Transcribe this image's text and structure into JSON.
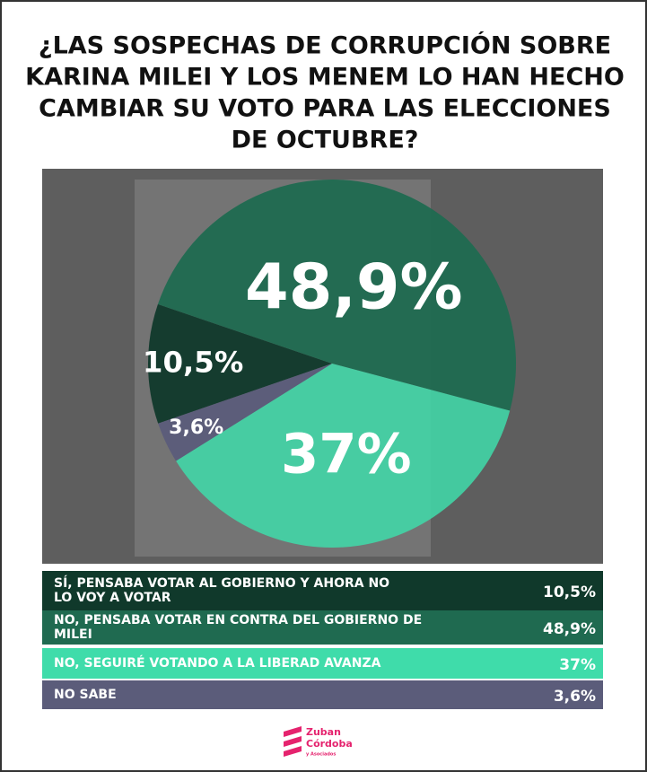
{
  "chart_data": {
    "type": "pie",
    "title": [
      "¿LAS SOSPECHAS DE CORRUPCIÓN SOBRE",
      "KARINA MILEI Y LOS MENEM LO HAN HECHO",
      "CAMBIAR SU VOTO PARA LAS ELECCIONES",
      "DE OCTUBRE?"
    ],
    "categories": [
      [
        "SÍ, PENSABA VOTAR AL GOBIERNO Y AHORA NO",
        "LO VOY A VOTAR"
      ],
      [
        "NO, PENSABA VOTAR EN CONTRA DEL GOBIERNO DE",
        "MILEI"
      ],
      [
        "NO, SEGUIRÉ VOTANDO A LA LIBERAD AVANZA"
      ],
      [
        "NO SABE"
      ]
    ],
    "values": [
      10.5,
      48.9,
      37,
      3.6
    ],
    "value_labels": [
      "10,5%",
      "48,9%",
      "37%",
      "3,6%"
    ],
    "colors": [
      "#10392b",
      "#1f6a50",
      "#3fdcaa",
      "#5b5c7a"
    ]
  },
  "logo": {
    "name": [
      "Zuban",
      "Córdoba"
    ],
    "sub": "y Asociados"
  }
}
